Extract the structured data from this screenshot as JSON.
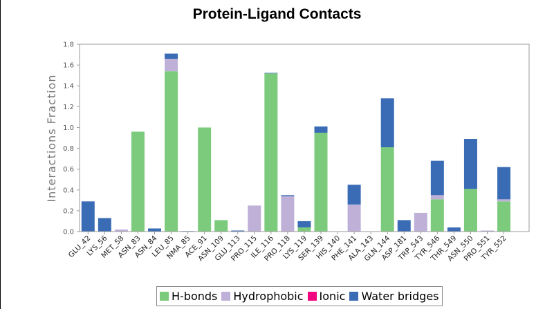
{
  "chart_data": {
    "type": "bar",
    "stacked": true,
    "title": "Protein-Ligand Contacts",
    "xlabel": "",
    "ylabel": "Interactions Fraction",
    "ylim": [
      0,
      1.8
    ],
    "yticks": [
      "0.0",
      "0.2",
      "0.4",
      "0.6",
      "0.8",
      "1.0",
      "1.2",
      "1.4",
      "1.6",
      "1.8"
    ],
    "grid": false,
    "legend_position": "bottom",
    "categories": [
      "GLU_42",
      "LYS_56",
      "MET_58",
      "ASN_83",
      "ASN_84",
      "LEU_85",
      "NMA_85",
      "ACE_91",
      "ASN_109",
      "GLU_113",
      "PRO_115",
      "ILE_116",
      "PRO_118",
      "LYS_119",
      "SER_139",
      "HIS_140",
      "PHE_141",
      "ALA_143",
      "GLN_144",
      "ASP_181",
      "TRP_543",
      "TYR_546",
      "THR_549",
      "ASN_550",
      "PRO_551",
      "TYR_552"
    ],
    "series": [
      {
        "name": "H-bonds",
        "color": "#7ccb7c",
        "values": [
          0,
          0,
          0,
          0.96,
          0,
          1.54,
          0,
          1.0,
          0.11,
          0,
          0,
          1.52,
          0,
          0.04,
          0.95,
          0,
          0,
          0,
          0.81,
          0,
          0,
          0.31,
          0,
          0.41,
          0,
          0.29
        ]
      },
      {
        "name": "Hydrophobic",
        "color": "#bfb0d8",
        "values": [
          0,
          0,
          0.02,
          0,
          0,
          0.12,
          0,
          0,
          0,
          0,
          0.25,
          0,
          0.34,
          0,
          0,
          0,
          0.26,
          0,
          0,
          0,
          0.18,
          0.04,
          0,
          0,
          0.01,
          0.02
        ]
      },
      {
        "name": "Ionic",
        "color": "#f0077f",
        "values": [
          0,
          0,
          0,
          0,
          0,
          0,
          0,
          0,
          0,
          0,
          0,
          0,
          0,
          0,
          0,
          0,
          0,
          0,
          0,
          0,
          0,
          0,
          0,
          0,
          0,
          0
        ]
      },
      {
        "name": "Water bridges",
        "color": "#3a6cb5",
        "values": [
          0.29,
          0.13,
          0,
          0,
          0.03,
          0.05,
          0.005,
          0,
          0,
          0.01,
          0,
          0.005,
          0.01,
          0.06,
          0.06,
          0,
          0.19,
          0,
          0.47,
          0.11,
          0,
          0.33,
          0.04,
          0.48,
          0,
          0.31
        ]
      }
    ]
  }
}
